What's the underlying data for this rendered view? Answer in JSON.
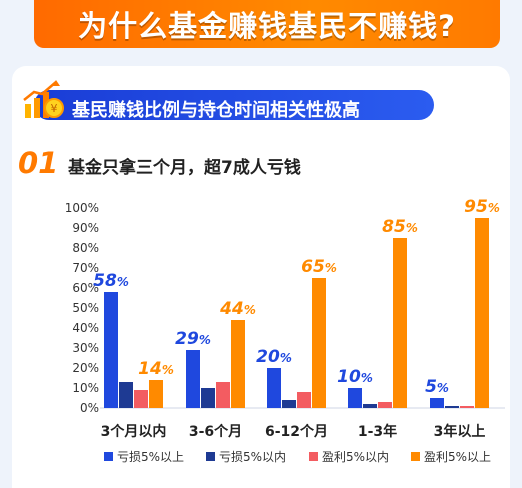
{
  "header": {
    "title": "为什么基金赚钱基民不赚钱?",
    "subtitle": "基民赚钱比例与持仓时间相关性极高",
    "section_number": "01",
    "section_title": "基金只拿三个月，超7成人亏钱"
  },
  "colors": {
    "banner": "#ff7a00",
    "subtitle_bg": "#2149e0",
    "accent": "#ff7a00"
  },
  "chart_data": {
    "type": "bar",
    "categories": [
      "3个月以内",
      "3-6个月",
      "6-12个月",
      "1-3年",
      "3年以上"
    ],
    "series": [
      {
        "name": "亏损5%以上",
        "color": "#1f48de",
        "values": [
          58,
          29,
          20,
          10,
          5
        ]
      },
      {
        "name": "亏损5%以内",
        "color": "#1e3a93",
        "values": [
          13,
          10,
          4,
          2,
          1
        ]
      },
      {
        "name": "盈利5%以内",
        "color": "#f35c61",
        "values": [
          9,
          13,
          8,
          3,
          1
        ]
      },
      {
        "name": "盈利5%以上",
        "color": "#ff8a00",
        "values": [
          14,
          44,
          65,
          85,
          95
        ]
      }
    ],
    "data_labels": [
      {
        "series": 0,
        "category": 0,
        "text": "58%"
      },
      {
        "series": 3,
        "category": 0,
        "text": "14%"
      },
      {
        "series": 0,
        "category": 1,
        "text": "29%"
      },
      {
        "series": 3,
        "category": 1,
        "text": "44%"
      },
      {
        "series": 0,
        "category": 2,
        "text": "20%"
      },
      {
        "series": 3,
        "category": 2,
        "text": "65%"
      },
      {
        "series": 0,
        "category": 3,
        "text": "10%"
      },
      {
        "series": 3,
        "category": 3,
        "text": "85%"
      },
      {
        "series": 0,
        "category": 4,
        "text": "5%"
      },
      {
        "series": 3,
        "category": 4,
        "text": "95%"
      }
    ],
    "yticks": [
      "0%",
      "10%",
      "20%",
      "30%",
      "40%",
      "50%",
      "60%",
      "70%",
      "80%",
      "90%",
      "100%"
    ],
    "ylim": [
      0,
      100
    ],
    "grid": false,
    "legend_position": "bottom"
  }
}
